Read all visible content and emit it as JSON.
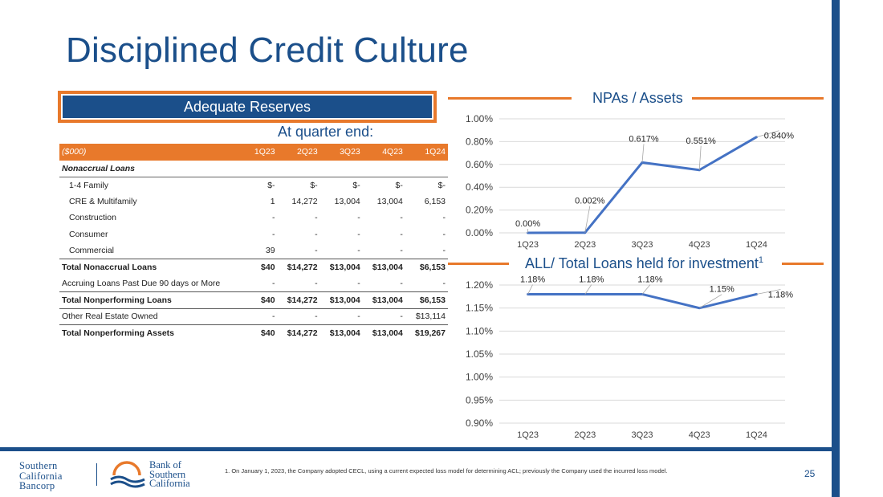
{
  "title": "Disciplined Credit Culture",
  "reserves_label": "Adequate Reserves",
  "quarter_end_label": "At quarter end:",
  "table": {
    "header": [
      "($000)",
      "1Q23",
      "2Q23",
      "3Q23",
      "4Q23",
      "1Q24"
    ],
    "section": "Nonaccrual Loans",
    "rows": [
      {
        "label": "1-4 Family",
        "values": [
          "$-",
          "$-",
          "$-",
          "$-",
          "$-"
        ]
      },
      {
        "label": "CRE & Multifamily",
        "values": [
          "1",
          "14,272",
          "13,004",
          "13,004",
          "6,153"
        ]
      },
      {
        "label": "Construction",
        "values": [
          "-",
          "-",
          "-",
          "-",
          "-"
        ]
      },
      {
        "label": "Consumer",
        "values": [
          "-",
          "-",
          "-",
          "-",
          "-"
        ]
      },
      {
        "label": "Commercial",
        "values": [
          "39",
          "-",
          "-",
          "-",
          "-"
        ]
      },
      {
        "label": "Total Nonaccrual Loans",
        "values": [
          "$40",
          "$14,272",
          "$13,004",
          "$13,004",
          "$6,153"
        ]
      },
      {
        "label": "Accruing Loans Past Due 90 days or More",
        "values": [
          "-",
          "-",
          "-",
          "-",
          "-"
        ]
      },
      {
        "label": "Total Nonperforming Loans",
        "values": [
          "$40",
          "$14,272",
          "$13,004",
          "$13,004",
          "$6,153"
        ]
      },
      {
        "label": "Other Real Estate Owned",
        "values": [
          "-",
          "-",
          "-",
          "-",
          "$13,114"
        ]
      },
      {
        "label": "Total Nonperforming Assets",
        "values": [
          "$40",
          "$14,272",
          "$13,004",
          "$13,004",
          "$19,267"
        ]
      }
    ]
  },
  "chart_data": [
    {
      "type": "line",
      "title": "NPAs / Assets",
      "categories": [
        "1Q23",
        "2Q23",
        "3Q23",
        "4Q23",
        "1Q24"
      ],
      "values": [
        0.0,
        0.002,
        0.617,
        0.551,
        0.84
      ],
      "data_labels": [
        "0.00%",
        "0.002%",
        "0.617%",
        "0.551%",
        "0.840%"
      ],
      "ylim": [
        0.0,
        1.0
      ],
      "yticks": [
        0.0,
        0.2,
        0.4,
        0.6,
        0.8,
        1.0
      ],
      "ytick_labels": [
        "0.00%",
        "0.20%",
        "0.40%",
        "0.60%",
        "0.80%",
        "1.00%"
      ],
      "line_color": "#4472c4"
    },
    {
      "type": "line",
      "title": "ALL/ Total Loans held for investment",
      "title_superscript": "1",
      "categories": [
        "1Q23",
        "2Q23",
        "3Q23",
        "4Q23",
        "1Q24"
      ],
      "values": [
        1.18,
        1.18,
        1.18,
        1.15,
        1.18
      ],
      "data_labels": [
        "1.18%",
        "1.18%",
        "1.18%",
        "1.15%",
        "1.18%"
      ],
      "ylim": [
        0.9,
        1.2
      ],
      "yticks": [
        0.9,
        0.95,
        1.0,
        1.05,
        1.1,
        1.15,
        1.2
      ],
      "ytick_labels": [
        "0.90%",
        "0.95%",
        "1.00%",
        "1.05%",
        "1.10%",
        "1.15%",
        "1.20%"
      ],
      "line_color": "#4472c4"
    }
  ],
  "footnote": "1.    On January 1, 2023, the Company adopted CECL, using a current expected loss model for determining ACL; previously the Company used the incurred loss model.",
  "page_number": "25",
  "logo_left": [
    "Southern",
    "California",
    "Bancorp"
  ],
  "logo_right": [
    "Bank of",
    "Southern",
    "California"
  ],
  "colors": {
    "brand_blue": "#1b4f8a",
    "accent_orange": "#e8792b",
    "series_blue": "#4472c4"
  }
}
